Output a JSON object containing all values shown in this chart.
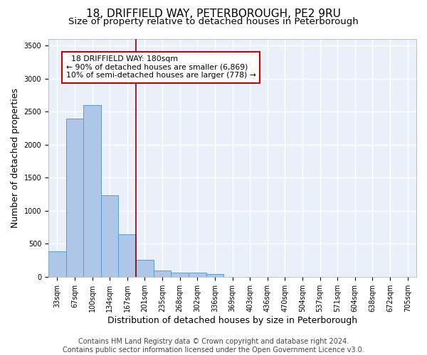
{
  "title_line1": "18, DRIFFIELD WAY, PETERBOROUGH, PE2 9RU",
  "title_line2": "Size of property relative to detached houses in Peterborough",
  "xlabel": "Distribution of detached houses by size in Peterborough",
  "ylabel": "Number of detached properties",
  "footnote": "Contains HM Land Registry data © Crown copyright and database right 2024.\nContains public sector information licensed under the Open Government Licence v3.0.",
  "bar_labels": [
    "33sqm",
    "67sqm",
    "100sqm",
    "134sqm",
    "167sqm",
    "201sqm",
    "235sqm",
    "268sqm",
    "302sqm",
    "336sqm",
    "369sqm",
    "403sqm",
    "436sqm",
    "470sqm",
    "504sqm",
    "537sqm",
    "571sqm",
    "604sqm",
    "638sqm",
    "672sqm",
    "705sqm"
  ],
  "bar_values": [
    390,
    2400,
    2600,
    1240,
    640,
    260,
    100,
    60,
    60,
    40,
    0,
    0,
    0,
    0,
    0,
    0,
    0,
    0,
    0,
    0,
    0
  ],
  "bar_color": "#aec6e8",
  "bar_edge_color": "#5b9bd5",
  "ylim": [
    0,
    3600
  ],
  "yticks": [
    0,
    500,
    1000,
    1500,
    2000,
    2500,
    3000,
    3500
  ],
  "vline_x": 4.5,
  "vline_color": "#8b0000",
  "annotation_text": "  18 DRIFFIELD WAY: 180sqm\n← 90% of detached houses are smaller (6,869)\n10% of semi-detached houses are larger (778) →",
  "annotation_box_color": "white",
  "annotation_box_edge_color": "#cc0000",
  "bg_color": "#eaf0f9",
  "grid_color": "white",
  "title1_fontsize": 11,
  "title2_fontsize": 9.5,
  "xlabel_fontsize": 9,
  "ylabel_fontsize": 9,
  "tick_fontsize": 7,
  "footnote_fontsize": 7
}
